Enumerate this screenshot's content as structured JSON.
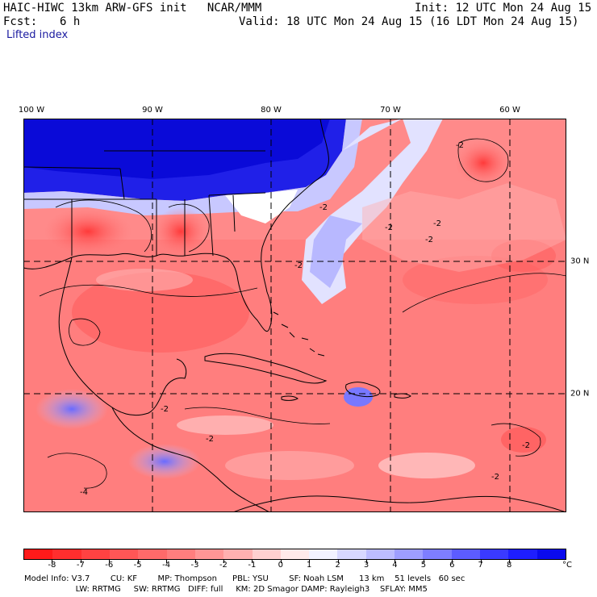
{
  "header": {
    "model_line": "HAIC-HIWC 13km ARW-GFS init   NCAR/MMM",
    "init": "Init: 12 UTC Mon 24 Aug 15",
    "fcst_label": "Fcst:",
    "fcst_value": "6 h",
    "valid": "Valid: 18 UTC Mon 24 Aug 15 (16 LDT Mon 24 Aug 15)",
    "field": "Lifted index"
  },
  "map": {
    "lon_labels": [
      "100 W",
      "90 W",
      "80 W",
      "70 W",
      "60 W"
    ],
    "lat_labels": [
      "30 N",
      "20 N"
    ],
    "contour_labels": [
      "-2",
      "-2",
      "-2",
      "-2",
      "-2",
      "-2",
      "-2",
      "-2",
      "-4",
      "-2",
      "-2"
    ]
  },
  "colorbar": {
    "ticks": [
      "-8",
      "-7",
      "-6",
      "-5",
      "-4",
      "-3",
      "-2",
      "-1",
      "0",
      "1",
      "2",
      "3",
      "4",
      "5",
      "6",
      "7",
      "8"
    ],
    "unit": "°C",
    "colors": [
      "#ff1a1a",
      "#ff2e2e",
      "#ff4242",
      "#ff5656",
      "#ff6a6a",
      "#ff7e7e",
      "#ff9696",
      "#ffb0b0",
      "#ffd0d0",
      "#ffeaea",
      "#f2f2ff",
      "#d8d8ff",
      "#bcbcff",
      "#9e9eff",
      "#7e7eff",
      "#5c5cff",
      "#3a3aff",
      "#1e1eff",
      "#0a0aee"
    ]
  },
  "footer": {
    "line1": "Model Info: V3.7        CU: KF        MP: Thompson      PBL: YSU        SF: Noah LSM      13 km    51 levels   60 sec",
    "line2": "                    LW: RRTMG     SW: RRTMG   DIFF: full     KM: 2D Smagor DAMP: Rayleigh3    SFLAY: MM5"
  }
}
